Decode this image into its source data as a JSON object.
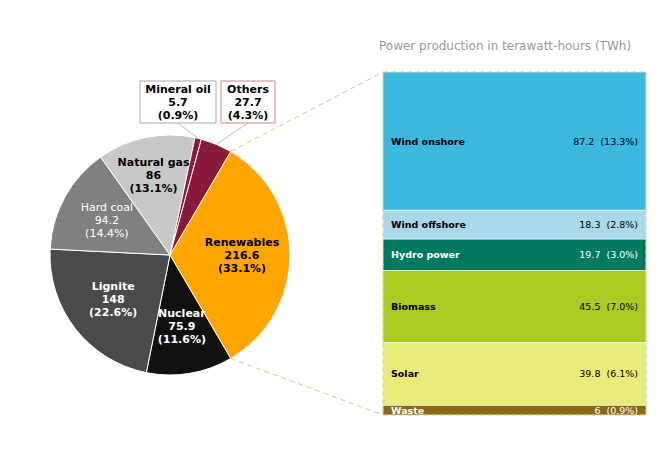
{
  "chart_data": [
    {
      "type": "pie",
      "categories": [
        "Renewables",
        "Nuclear",
        "Lignite",
        "Hard coal",
        "Natural gas",
        "Mineral oil",
        "Others"
      ],
      "values": [
        216.6,
        75.9,
        148.0,
        94.2,
        86.0,
        5.7,
        27.7
      ],
      "percentages": [
        33.1,
        11.6,
        22.6,
        14.4,
        13.1,
        0.9,
        4.3
      ],
      "percentage_labels": [
        "(33.1%)",
        "(11.6%)",
        "(22.6%)",
        "(14.4%)",
        "(13.1%)",
        "(0.9%)",
        "(4.3%)"
      ],
      "colors": [
        "#FFA500",
        "#111111",
        "#4a4a4a",
        "#808080",
        "#c8c8c8",
        "#8B1A3A",
        "#8B1A3A"
      ],
      "data_labels": true
    },
    {
      "type": "bar",
      "title": "Power production in terawatt-hours (TWh)",
      "stacked": true,
      "tick_labels": false,
      "data_labels": true,
      "series": [
        {
          "name": "Wind onshore",
          "color": "#3BB8E0",
          "values": [
            87.2
          ],
          "percentages": [
            13.3
          ],
          "percentage_labels": [
            "(13.3%)"
          ]
        },
        {
          "name": "Wind offshore",
          "color": "#A8D8EA",
          "values": [
            18.3
          ],
          "percentages": [
            2.8
          ],
          "percentage_labels": [
            "(2.8%)"
          ]
        },
        {
          "name": "Hydro power",
          "color": "#007A5E",
          "values": [
            19.7
          ],
          "percentages": [
            3.0
          ],
          "percentage_labels": [
            "(3.0%)"
          ]
        },
        {
          "name": "Biomass",
          "color": "#AACC22",
          "values": [
            45.5
          ],
          "percentages": [
            7.0
          ],
          "percentage_labels": [
            "(7.0%)"
          ]
        },
        {
          "name": "Solar",
          "color": "#E8EC7A",
          "values": [
            39.8
          ],
          "percentages": [
            6.1
          ],
          "percentage_labels": [
            "(6.1%)"
          ]
        },
        {
          "name": "Waste",
          "color": "#8B6914",
          "values": [
            6.0
          ],
          "percentages": [
            0.9
          ],
          "percentage_labels": [
            "(0.9%)"
          ]
        }
      ]
    }
  ]
}
